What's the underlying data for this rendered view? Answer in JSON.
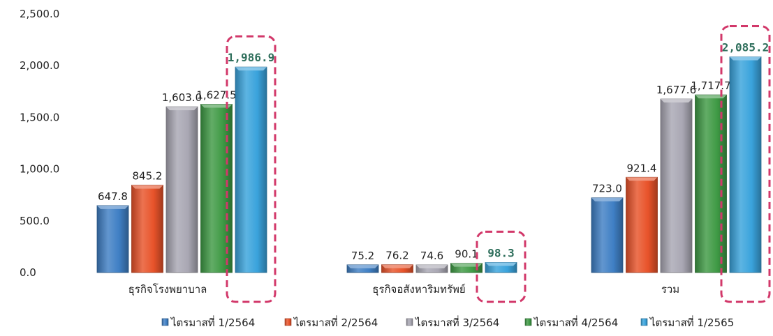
{
  "chart_data": {
    "type": "bar",
    "categories": [
      "ธุรกิจโรงพยาบาล",
      "ธุรกิจอสังหาริมทรัพย์",
      "รวม"
    ],
    "series": [
      {
        "name": "ไตรมาสที่ 1/2564",
        "color": "#3f7fc4",
        "values": [
          647.8,
          75.2,
          723.0
        ],
        "labels": [
          "647.8",
          "75.2",
          "723.0"
        ]
      },
      {
        "name": "ไตรมาสที่ 2/2564",
        "color": "#e8532a",
        "values": [
          845.2,
          76.2,
          921.4
        ],
        "labels": [
          "845.2",
          "76.2",
          "921.4"
        ]
      },
      {
        "name": "ไตรมาสที่ 3/2564",
        "color": "#a9a7b3",
        "values": [
          1603.0,
          74.6,
          1677.6
        ],
        "labels": [
          "1,603.0",
          "74.6",
          "1,677.6"
        ]
      },
      {
        "name": "ไตรมาสที่ 4/2564",
        "color": "#3f9a45",
        "values": [
          1627.5,
          90.1,
          1717.7
        ],
        "labels": [
          "1,627.5",
          "90.1",
          "1,717.7"
        ]
      },
      {
        "name": "ไตรมาสที่ 1/2565",
        "color": "#3aa3dc",
        "values": [
          1986.9,
          98.3,
          2085.2
        ],
        "labels": [
          "1,986.9",
          "98.3",
          "2,085.2"
        ],
        "highlighted": true
      }
    ],
    "yticks": [
      "0.0",
      "500.0",
      "1,000.0",
      "1,500.0",
      "2,000.0",
      "2,500.0"
    ],
    "ylim": [
      0,
      2500
    ],
    "grid": false,
    "legend_position": "bottom",
    "highlight_color": "#d2386a"
  }
}
